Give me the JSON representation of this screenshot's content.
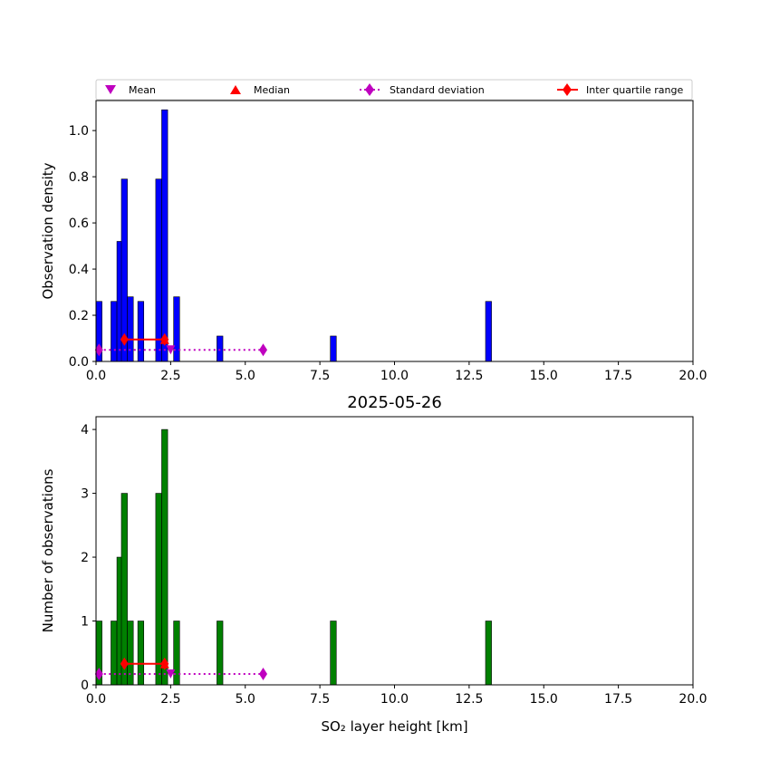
{
  "legend": {
    "mean": "Mean",
    "median": "Median",
    "std": "Standard deviation",
    "iqr": "Inter quartile range"
  },
  "colors": {
    "density_bars": "#0000ff",
    "count_bars": "#008000",
    "mean": "#bf00bf",
    "median": "#ff0000",
    "std": "#bf00bf",
    "iqr": "#ff0000"
  },
  "chart_data": [
    {
      "type": "bar",
      "title": "",
      "xlabel": "",
      "ylabel": "Observation density",
      "xlim": [
        0,
        20
      ],
      "ylim": [
        0,
        1.13
      ],
      "bin_width": 0.2,
      "xticks": [
        0,
        2.5,
        5,
        7.5,
        10,
        12.5,
        15,
        17.5,
        20
      ],
      "xtick_labels": [
        "0.0",
        "2.5",
        "5.0",
        "7.5",
        "10.0",
        "12.5",
        "15.0",
        "17.5",
        "20.0"
      ],
      "yticks": [
        0,
        0.2,
        0.4,
        0.6,
        0.8,
        1.0
      ],
      "ytick_labels": [
        "0.0",
        "0.2",
        "0.4",
        "0.6",
        "0.8",
        "1.0"
      ],
      "bin_starts": [
        0.0,
        0.5,
        0.7,
        0.85,
        1.05,
        1.4,
        2.0,
        2.2,
        2.6,
        4.05,
        7.85,
        13.05
      ],
      "values": [
        0.26,
        0.26,
        0.52,
        0.79,
        0.28,
        0.26,
        0.79,
        1.09,
        0.28,
        0.11,
        0.11,
        0.26
      ],
      "stats": {
        "mean": {
          "x": 2.5,
          "y": 0.05
        },
        "median": {
          "x": 2.3,
          "y": 0.095
        },
        "std": {
          "x_range": [
            0.1,
            5.6
          ],
          "y": 0.05
        },
        "iqr": {
          "x_range": [
            0.95,
            2.3
          ],
          "y": 0.095
        }
      },
      "legend_position": "top"
    },
    {
      "type": "bar",
      "title": "2025-05-26",
      "xlabel": "SO₂ layer height [km]",
      "ylabel": "Number of observations",
      "xlim": [
        0,
        20
      ],
      "ylim": [
        0,
        4.2
      ],
      "bin_width": 0.2,
      "xticks": [
        0,
        2.5,
        5,
        7.5,
        10,
        12.5,
        15,
        17.5,
        20
      ],
      "xtick_labels": [
        "0.0",
        "2.5",
        "5.0",
        "7.5",
        "10.0",
        "12.5",
        "15.0",
        "17.5",
        "20.0"
      ],
      "yticks": [
        0,
        1,
        2,
        3,
        4
      ],
      "ytick_labels": [
        "0",
        "1",
        "2",
        "3",
        "4"
      ],
      "bin_starts": [
        0.0,
        0.5,
        0.7,
        0.85,
        1.05,
        1.4,
        2.0,
        2.2,
        2.6,
        4.05,
        7.85,
        13.05
      ],
      "values": [
        1,
        1,
        2,
        3,
        1,
        1,
        3,
        4,
        1,
        1,
        1,
        1
      ],
      "stats": {
        "mean": {
          "x": 2.5,
          "y": 0.17
        },
        "median": {
          "x": 2.3,
          "y": 0.33
        },
        "std": {
          "x_range": [
            0.1,
            5.6
          ],
          "y": 0.17
        },
        "iqr": {
          "x_range": [
            0.95,
            2.3
          ],
          "y": 0.33
        }
      }
    }
  ]
}
